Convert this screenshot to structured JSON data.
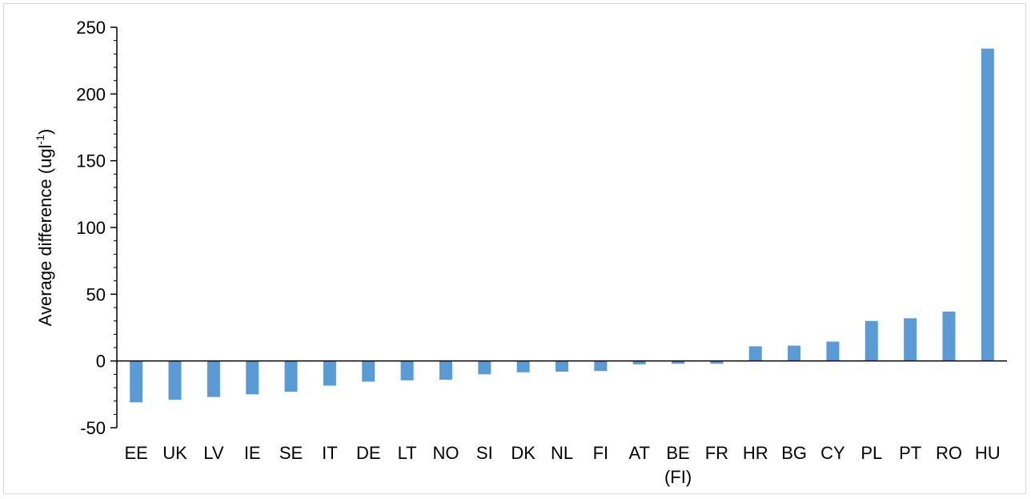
{
  "chart_data": {
    "type": "bar",
    "ylabel": "Average difference (ugl",
    "ylabel_superscript": "-1",
    "ylabel_suffix": ")",
    "ylim": [
      -50,
      250
    ],
    "yticks": [
      -50,
      0,
      50,
      100,
      150,
      200,
      250
    ],
    "grid": false,
    "bar_color": "#5b9bd5",
    "categories": [
      "EE",
      "UK",
      "LV",
      "IE",
      "SE",
      "IT",
      "DE",
      "LT",
      "NO",
      "SI",
      "DK",
      "NL",
      "FI",
      "AT",
      "BE (FI)",
      "FR",
      "HR",
      "BG",
      "CY",
      "PL",
      "PT",
      "RO",
      "HU"
    ],
    "category_lines": [
      [
        "EE"
      ],
      [
        "UK"
      ],
      [
        "LV"
      ],
      [
        "IE"
      ],
      [
        "SE"
      ],
      [
        "IT"
      ],
      [
        "DE"
      ],
      [
        "LT"
      ],
      [
        "NO"
      ],
      [
        "SI"
      ],
      [
        "DK"
      ],
      [
        "NL"
      ],
      [
        "FI"
      ],
      [
        "AT"
      ],
      [
        "BE",
        "(FI)"
      ],
      [
        "FR"
      ],
      [
        "HR"
      ],
      [
        "BG"
      ],
      [
        "CY"
      ],
      [
        "PL"
      ],
      [
        "PT"
      ],
      [
        "RO"
      ],
      [
        "HU"
      ]
    ],
    "values": [
      -31,
      -29,
      -27,
      -25,
      -23,
      -18.5,
      -15.5,
      -14.5,
      -14,
      -10,
      -8.5,
      -8,
      -7.5,
      -2.5,
      -2,
      -2,
      11,
      11.5,
      14.5,
      30,
      32,
      37,
      234
    ]
  }
}
